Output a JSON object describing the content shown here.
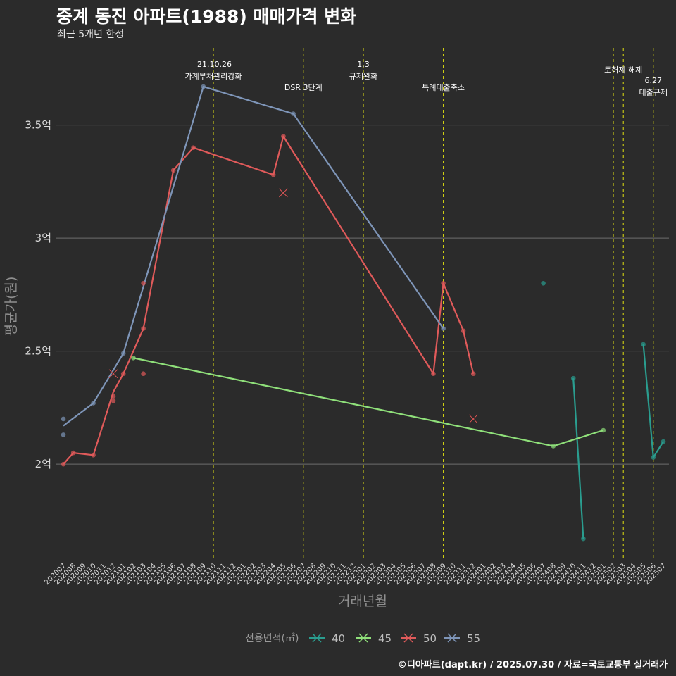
{
  "title": "중계 동진 아파트(1988) 매매가격 변화",
  "subtitle": "최근 5개년 한정",
  "caption": "©디아파트(dapt.kr) / 2025.07.30 / 자료=국토교통부 실거래가",
  "chart_data": {
    "type": "line",
    "title": "중계 동진 아파트(1988) 매매가격 변화",
    "subtitle": "최근 5개년 한정",
    "xlabel": "거래년월",
    "ylabel": "평균가(원)",
    "x_ticks": [
      "202007",
      "202008",
      "202009",
      "202010",
      "202011",
      "202012",
      "202101",
      "202102",
      "202103",
      "202104",
      "202105",
      "202106",
      "202107",
      "202108",
      "202109",
      "202110",
      "202111",
      "202112",
      "202201",
      "202202",
      "202203",
      "202204",
      "202205",
      "202206",
      "202207",
      "202208",
      "202209",
      "202210",
      "202211",
      "202212",
      "202301",
      "202302",
      "202303",
      "202304",
      "202305",
      "202306",
      "202307",
      "202308",
      "202309",
      "202310",
      "202311",
      "202312",
      "202401",
      "202402",
      "202403",
      "202404",
      "202405",
      "202406",
      "202407",
      "202408",
      "202409",
      "202410",
      "202411",
      "202412",
      "202501",
      "202502",
      "202503",
      "202504",
      "202505",
      "202506",
      "202507"
    ],
    "y_ticks": [
      {
        "value": 2.0,
        "label": "2억"
      },
      {
        "value": 2.5,
        "label": "2.5억"
      },
      {
        "value": 3.0,
        "label": "3억"
      },
      {
        "value": 3.5,
        "label": "3.5억"
      }
    ],
    "ylim": [
      1.58,
      3.86
    ],
    "legend_title": "전용면적(㎡)",
    "series": [
      {
        "name": "40",
        "color": "#2a9d8f",
        "line": [
          [
            "202410",
            2.38
          ],
          [
            "202411",
            1.67
          ]
        ],
        "line2": [
          [
            "202505",
            2.53
          ],
          [
            "202506",
            2.03
          ],
          [
            "202507",
            2.1
          ]
        ],
        "points": [
          [
            "202407",
            2.8
          ],
          [
            "202410",
            2.38
          ],
          [
            "202411",
            1.67
          ],
          [
            "202505",
            2.53
          ],
          [
            "202506",
            2.03
          ],
          [
            "202507",
            2.1
          ]
        ],
        "crosses": []
      },
      {
        "name": "45",
        "color": "#8fe07a",
        "line": [
          [
            "202102",
            2.47
          ],
          [
            "202408",
            2.08
          ],
          [
            "202501",
            2.15
          ]
        ],
        "points": [
          [
            "202102",
            2.47
          ],
          [
            "202408",
            2.08
          ],
          [
            "202501",
            2.15
          ]
        ],
        "crosses": []
      },
      {
        "name": "50",
        "color": "#e05a5a",
        "line": [
          [
            "202007",
            2.0
          ],
          [
            "202008",
            2.05
          ],
          [
            "202010",
            2.04
          ],
          [
            "202012",
            2.32
          ],
          [
            "202101",
            2.4
          ],
          [
            "202103",
            2.6
          ],
          [
            "202106",
            3.3
          ],
          [
            "202108",
            3.4
          ],
          [
            "202204",
            3.28
          ],
          [
            "202205",
            3.45
          ],
          [
            "202308",
            2.4
          ],
          [
            "202309",
            2.8
          ],
          [
            "202311",
            2.59
          ],
          [
            "202312",
            2.4
          ]
        ],
        "points": [
          [
            "202007",
            2.0
          ],
          [
            "202008",
            2.05
          ],
          [
            "202010",
            2.04
          ],
          [
            "202012",
            2.3
          ],
          [
            "202012",
            2.28
          ],
          [
            "202101",
            2.4
          ],
          [
            "202103",
            2.6
          ],
          [
            "202103",
            2.8
          ],
          [
            "202103",
            2.4
          ],
          [
            "202106",
            3.3
          ],
          [
            "202108",
            3.4
          ],
          [
            "202204",
            3.28
          ],
          [
            "202205",
            3.45
          ],
          [
            "202308",
            2.4
          ],
          [
            "202309",
            2.8
          ],
          [
            "202311",
            2.59
          ],
          [
            "202312",
            2.4
          ]
        ],
        "crosses": [
          [
            "202012",
            2.4
          ],
          [
            "202205",
            3.2
          ],
          [
            "202312",
            2.2
          ]
        ]
      },
      {
        "name": "55",
        "color": "#7e95b8",
        "line": [
          [
            "202007",
            2.17
          ],
          [
            "202010",
            2.27
          ],
          [
            "202101",
            2.49
          ],
          [
            "202109",
            3.67
          ],
          [
            "202206",
            3.55
          ],
          [
            "202309",
            2.6
          ]
        ],
        "points": [
          [
            "202007",
            2.2
          ],
          [
            "202007",
            2.13
          ],
          [
            "202010",
            2.27
          ],
          [
            "202101",
            2.49
          ],
          [
            "202109",
            3.67
          ],
          [
            "202206",
            3.55
          ],
          [
            "202309",
            2.6
          ]
        ],
        "crosses": []
      }
    ],
    "events": [
      {
        "x": "202110",
        "lines": [
          "'21.10.26",
          "가계부채관리강화"
        ]
      },
      {
        "x": "202207",
        "lines": [
          "DSR 3단계"
        ]
      },
      {
        "x": "202301",
        "lines": [
          "1.3",
          "규제완화"
        ]
      },
      {
        "x": "202309",
        "lines": [
          "특례대출축소"
        ]
      },
      {
        "x": "202502",
        "lines": []
      },
      {
        "x": "202503",
        "lines": [
          "토허제 해제"
        ]
      },
      {
        "x": "202506",
        "lines": [
          "6.27",
          "대출규제"
        ]
      }
    ]
  }
}
